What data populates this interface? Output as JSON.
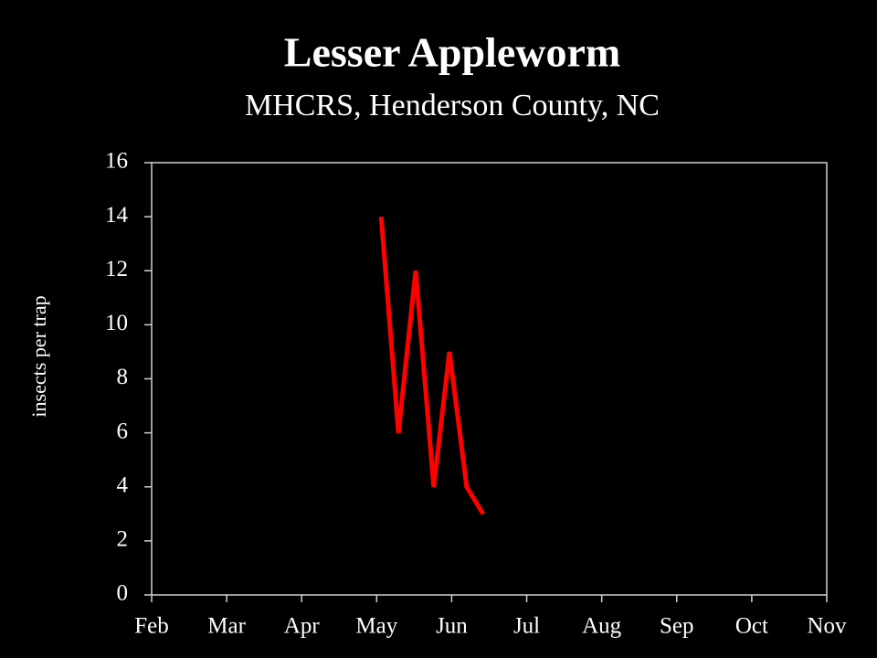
{
  "chart_data": {
    "type": "line",
    "title": "Lesser Appleworm",
    "subtitle": "MHCRS, Henderson County, NC",
    "y_label": "insects per trap",
    "x": [
      3.06,
      3.29,
      3.52,
      3.76,
      3.97,
      4.2,
      4.42
    ],
    "series": [
      {
        "color": "#ff0000",
        "values": [
          14,
          6,
          12,
          4,
          9,
          4,
          3
        ]
      }
    ],
    "xlim": [
      0,
      9
    ],
    "xticks": [
      {
        "value": 0,
        "label": "Feb"
      },
      {
        "value": 1,
        "label": "Mar"
      },
      {
        "value": 2,
        "label": "Apr"
      },
      {
        "value": 3,
        "label": "May"
      },
      {
        "value": 4,
        "label": "Jun"
      },
      {
        "value": 5,
        "label": "Jul"
      },
      {
        "value": 6,
        "label": "Aug"
      },
      {
        "value": 7,
        "label": "Sep"
      },
      {
        "value": 8,
        "label": "Oct"
      },
      {
        "value": 9,
        "label": "Nov"
      }
    ],
    "ylim": [
      0,
      16
    ],
    "yticks": [
      0,
      2,
      4,
      6,
      8,
      10,
      12,
      14,
      16
    ]
  }
}
